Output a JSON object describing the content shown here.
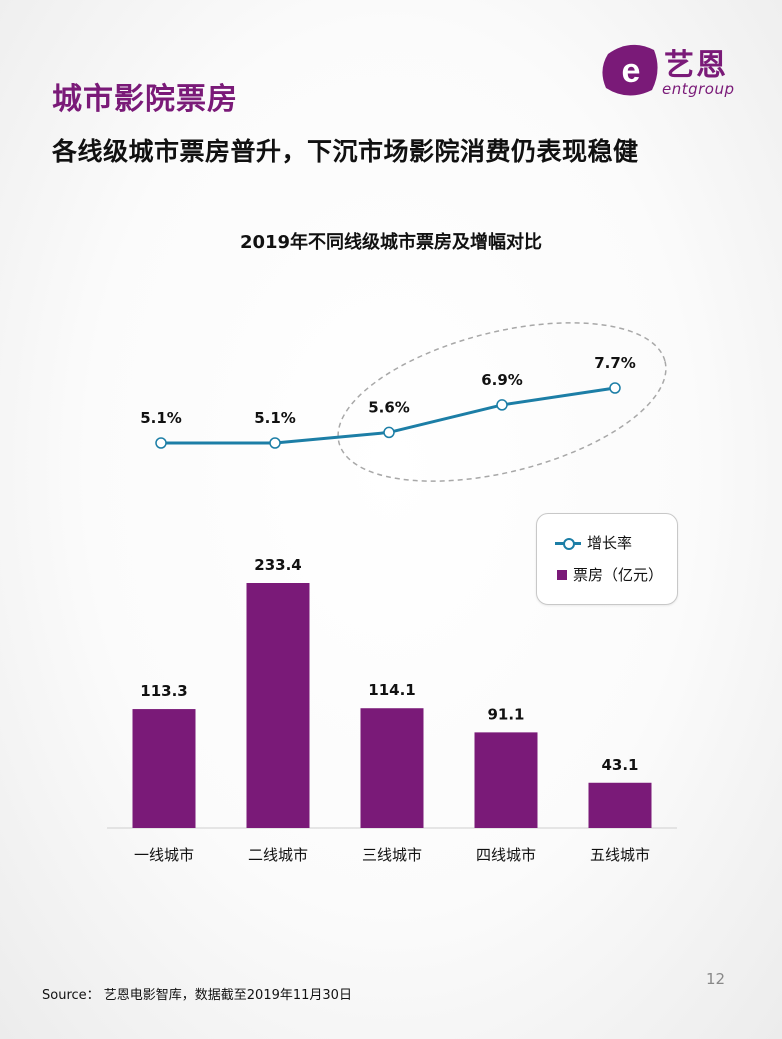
{
  "header": {
    "section_title": "城市影院票房",
    "headline": "各线级城市票房普升，下沉市场影院消费仍表现稳健"
  },
  "logo": {
    "cn": "艺恩",
    "en": "entgroup",
    "glyph": "e"
  },
  "colors": {
    "brand": "#7a1a78",
    "line": "#1c7ea6",
    "ellipse": "#a8a8a8",
    "axis": "#cfcfcf"
  },
  "chart_data": {
    "type": "bar",
    "title": "2019年不同线级城市票房及增幅对比",
    "categories": [
      "一线城市",
      "二线城市",
      "三线城市",
      "四线城市",
      "五线城市"
    ],
    "series": [
      {
        "name": "票房（亿元）",
        "type": "bar",
        "values": [
          113.3,
          233.4,
          114.1,
          91.1,
          43.1
        ],
        "labels": [
          "113.3",
          "233.4",
          "114.1",
          "91.1",
          "43.1"
        ]
      },
      {
        "name": "增长率",
        "type": "line",
        "values": [
          5.1,
          5.1,
          5.6,
          6.9,
          7.7
        ],
        "labels": [
          "5.1%",
          "5.1%",
          "5.6%",
          "6.9%",
          "7.7%"
        ]
      }
    ],
    "highlight": "三线城市 – 五线城市 growth rates circled by dashed ellipse",
    "legend_position": "right",
    "grid": false
  },
  "source": "Source： 艺恩电影智库，数据截至2019年11月30日",
  "page_number": "12"
}
